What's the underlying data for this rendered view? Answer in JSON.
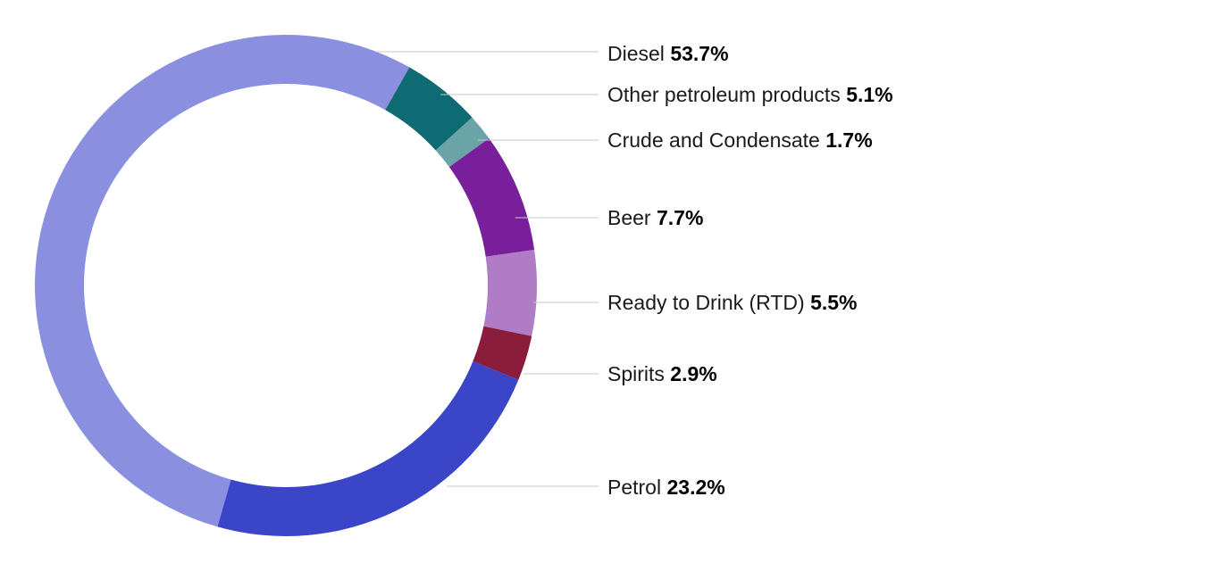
{
  "chart_data": {
    "type": "pie",
    "style": "donut",
    "slices": [
      {
        "label": "Diesel",
        "value": 53.7,
        "display": "53.7%",
        "color": "#8a8fe0"
      },
      {
        "label": "Other petroleum products",
        "value": 5.1,
        "display": "5.1%",
        "color": "#0e6b73"
      },
      {
        "label": "Crude and Condensate",
        "value": 1.7,
        "display": "1.7%",
        "color": "#6aa3a8"
      },
      {
        "label": "Beer",
        "value": 7.7,
        "display": "7.7%",
        "color": "#7a1f9c"
      },
      {
        "label": "Ready to Drink (RTD)",
        "value": 5.5,
        "display": "5.5%",
        "color": "#b07cc6"
      },
      {
        "label": "Spirits",
        "value": 2.9,
        "display": "2.9%",
        "color": "#8a1c3c"
      },
      {
        "label": "Petrol",
        "value": 23.2,
        "display": "23.2%",
        "color": "#3a45c8"
      }
    ],
    "legend": "right"
  }
}
